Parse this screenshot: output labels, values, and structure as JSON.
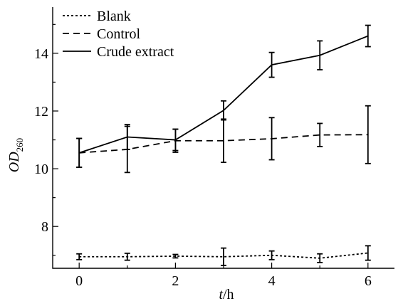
{
  "chart_data": {
    "type": "line",
    "xlabel_italic": "t",
    "xlabel_rest": "/h",
    "ylabel_main": "OD",
    "ylabel_sub": "260",
    "xlim": [
      -0.55,
      6.55
    ],
    "ylim": [
      6.55,
      15.6
    ],
    "xticks": [
      0,
      2,
      4,
      6
    ],
    "xminor": [
      1,
      3,
      5
    ],
    "yticks": [
      8,
      10,
      12,
      14
    ],
    "yminor": [
      7,
      9,
      11,
      13,
      15
    ],
    "x": [
      0,
      1,
      2,
      3,
      4,
      5,
      6
    ],
    "legend_position": "top-left",
    "series": [
      {
        "name": "Blank",
        "style": "dotted",
        "values": [
          6.95,
          6.95,
          6.97,
          6.95,
          7.0,
          6.9,
          7.08
        ],
        "errors": [
          0.1,
          0.12,
          0.06,
          0.3,
          0.15,
          0.15,
          0.25
        ]
      },
      {
        "name": "Control",
        "style": "dashed",
        "values": [
          10.55,
          10.67,
          10.97,
          10.97,
          11.04,
          11.17,
          11.18
        ],
        "errors": [
          0.5,
          0.8,
          0.4,
          0.75,
          0.73,
          0.4,
          1.0
        ]
      },
      {
        "name": "Crude extract",
        "style": "solid",
        "values": [
          10.55,
          11.1,
          11.0,
          12.02,
          13.6,
          13.93,
          14.6
        ],
        "errors": [
          0.5,
          0.43,
          0.37,
          0.33,
          0.43,
          0.5,
          0.37
        ]
      }
    ]
  }
}
